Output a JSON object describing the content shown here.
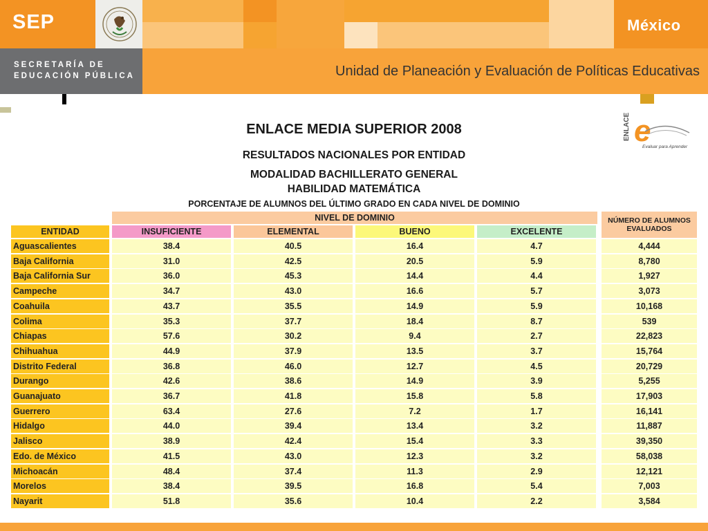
{
  "header": {
    "sep_logo": "SEP",
    "country_logo": "México",
    "secretaria_line1": "SECRETARÍA DE",
    "secretaria_line2": "EDUCACIÓN PÚBLICA",
    "unit_title": "Unidad de Planeación y Evaluación de Políticas Educativas"
  },
  "document": {
    "title": "ENLACE MEDIA SUPERIOR 2008",
    "subtitle1": "RESULTADOS NACIONALES POR ENTIDAD",
    "subtitle2": "MODALIDAD BACHILLERATO GENERAL",
    "subtitle3": "HABILIDAD MATEMÁTICA",
    "caption": "PORCENTAJE DE ALUMNOS DEL ÚLTIMO GRADO EN CADA NIVEL DE DOMINIO",
    "enlace_logo_text": "ENLACE",
    "enlace_logo_tagline": "Evaluar para Aprender"
  },
  "table": {
    "group_header": "NIVEL DE DOMINIO",
    "entity_header": "ENTIDAD",
    "total_header_line1": "NÚMERO DE ALUMNOS",
    "total_header_line2": "EVALUADOS",
    "levels": [
      {
        "label": "INSUFICIENTE",
        "color": "#f49ac8"
      },
      {
        "label": "ELEMENTAL",
        "color": "#fbc79a"
      },
      {
        "label": "BUENO",
        "color": "#fcf87a"
      },
      {
        "label": "EXCELENTE",
        "color": "#c5eec8"
      }
    ],
    "rows": [
      {
        "entity": "Aguascalientes",
        "values": [
          "38.4",
          "40.5",
          "16.4",
          "4.7"
        ],
        "total": "4,444"
      },
      {
        "entity": "Baja California",
        "values": [
          "31.0",
          "42.5",
          "20.5",
          "5.9"
        ],
        "total": "8,780"
      },
      {
        "entity": "Baja California Sur",
        "values": [
          "36.0",
          "45.3",
          "14.4",
          "4.4"
        ],
        "total": "1,927"
      },
      {
        "entity": "Campeche",
        "values": [
          "34.7",
          "43.0",
          "16.6",
          "5.7"
        ],
        "total": "3,073"
      },
      {
        "entity": "Coahuila",
        "values": [
          "43.7",
          "35.5",
          "14.9",
          "5.9"
        ],
        "total": "10,168"
      },
      {
        "entity": "Colima",
        "values": [
          "35.3",
          "37.7",
          "18.4",
          "8.7"
        ],
        "total": "539"
      },
      {
        "entity": "Chiapas",
        "values": [
          "57.6",
          "30.2",
          "9.4",
          "2.7"
        ],
        "total": "22,823"
      },
      {
        "entity": "Chihuahua",
        "values": [
          "44.9",
          "37.9",
          "13.5",
          "3.7"
        ],
        "total": "15,764"
      },
      {
        "entity": "Distrito Federal",
        "values": [
          "36.8",
          "46.0",
          "12.7",
          "4.5"
        ],
        "total": "20,729"
      },
      {
        "entity": "Durango",
        "values": [
          "42.6",
          "38.6",
          "14.9",
          "3.9"
        ],
        "total": "5,255"
      },
      {
        "entity": "Guanajuato",
        "values": [
          "36.7",
          "41.8",
          "15.8",
          "5.8"
        ],
        "total": "17,903"
      },
      {
        "entity": "Guerrero",
        "values": [
          "63.4",
          "27.6",
          "7.2",
          "1.7"
        ],
        "total": "16,141"
      },
      {
        "entity": "Hidalgo",
        "values": [
          "44.0",
          "39.4",
          "13.4",
          "3.2"
        ],
        "total": "11,887"
      },
      {
        "entity": "Jalisco",
        "values": [
          "38.9",
          "42.4",
          "15.4",
          "3.3"
        ],
        "total": "39,350"
      },
      {
        "entity": "Edo. de México",
        "values": [
          "41.5",
          "43.0",
          "12.3",
          "3.2"
        ],
        "total": "58,038"
      },
      {
        "entity": "Michoacán",
        "values": [
          "48.4",
          "37.4",
          "11.3",
          "2.9"
        ],
        "total": "12,121"
      },
      {
        "entity": "Morelos",
        "values": [
          "38.4",
          "39.5",
          "16.8",
          "5.4"
        ],
        "total": "7,003"
      },
      {
        "entity": "Nayarit",
        "values": [
          "51.8",
          "35.6",
          "10.4",
          "2.2"
        ],
        "total": "3,584"
      }
    ]
  }
}
